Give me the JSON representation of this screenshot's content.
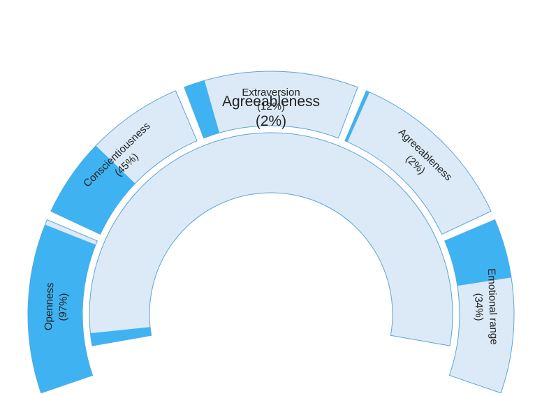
{
  "chart_data": {
    "type": "sunburst",
    "center": {
      "label": "Agreeableness",
      "value_text": "(2%)",
      "value": 2
    },
    "segments": [
      {
        "label": "Openness",
        "value_text": "(97%)",
        "value": 97
      },
      {
        "label": "Conscientiousness",
        "value_text": "(45%)",
        "value": 45
      },
      {
        "label": "Extraversion",
        "value_text": "(12%)",
        "value": 12
      },
      {
        "label": "Agreeableness",
        "value_text": "(2%)",
        "value": 2
      },
      {
        "label": "Emotional range",
        "value_text": "(34%)",
        "value": 34
      }
    ],
    "colors": {
      "track": "#dceaf7",
      "fill": "#3fb2f2",
      "border": "#5aa6d6",
      "text": "#222222"
    }
  }
}
